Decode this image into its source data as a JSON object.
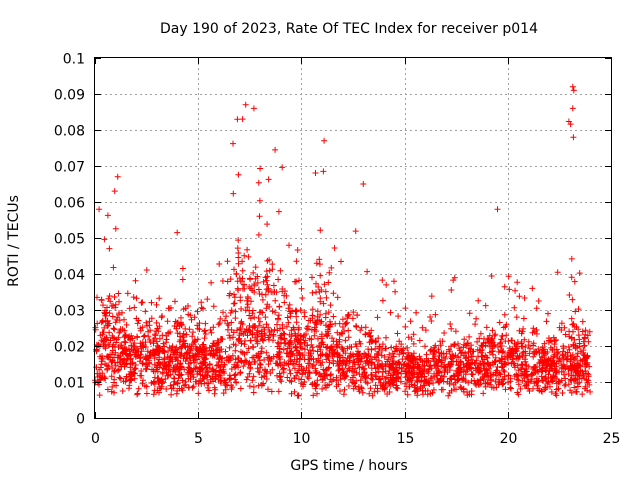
{
  "chart_data": {
    "type": "scatter",
    "title": "Day 190 of 2023, Rate Of TEC Index for receiver p014",
    "xlabel": "GPS time / hours",
    "ylabel": "ROTI / TECUs",
    "xlim": [
      0,
      25
    ],
    "ylim": [
      0,
      0.1
    ],
    "xticks": [
      "0",
      "5",
      "10",
      "15",
      "20",
      "25"
    ],
    "yticks": [
      "0",
      "0.01",
      "0.02",
      "0.03",
      "0.04",
      "0.05",
      "0.06",
      "0.07",
      "0.08",
      "0.09",
      "0.1"
    ],
    "grid": true,
    "marker": "+",
    "color": "#ff0000",
    "data_extent_hours": [
      0,
      24
    ],
    "series": [
      {
        "name": "ROTI",
        "profile_hours": [
          0,
          0.5,
          1,
          1.5,
          2,
          2.5,
          3,
          3.5,
          4,
          4.5,
          5,
          5.5,
          6,
          6.5,
          7,
          7.5,
          8,
          8.5,
          9,
          9.5,
          10,
          10.5,
          11,
          11.5,
          12,
          12.5,
          13,
          13.5,
          14,
          14.5,
          15,
          15.5,
          16,
          16.5,
          17,
          17.5,
          18,
          18.5,
          19,
          19.5,
          20,
          20.5,
          21,
          21.5,
          22,
          22.5,
          23,
          23.5,
          24
        ],
        "typical_roti": [
          0.018,
          0.02,
          0.019,
          0.017,
          0.018,
          0.017,
          0.018,
          0.016,
          0.017,
          0.016,
          0.017,
          0.016,
          0.016,
          0.017,
          0.022,
          0.024,
          0.023,
          0.024,
          0.022,
          0.02,
          0.019,
          0.021,
          0.02,
          0.018,
          0.016,
          0.015,
          0.016,
          0.014,
          0.013,
          0.013,
          0.013,
          0.013,
          0.013,
          0.014,
          0.014,
          0.014,
          0.014,
          0.015,
          0.015,
          0.015,
          0.016,
          0.016,
          0.015,
          0.015,
          0.014,
          0.014,
          0.015,
          0.015,
          0.015
        ],
        "upper_envelope_roti": [
          0.035,
          0.055,
          0.067,
          0.042,
          0.041,
          0.049,
          0.036,
          0.035,
          0.056,
          0.038,
          0.035,
          0.036,
          0.045,
          0.083,
          0.087,
          0.086,
          0.07,
          0.079,
          0.075,
          0.061,
          0.044,
          0.069,
          0.077,
          0.05,
          0.045,
          0.065,
          0.048,
          0.04,
          0.039,
          0.043,
          0.035,
          0.03,
          0.035,
          0.034,
          0.035,
          0.04,
          0.04,
          0.035,
          0.043,
          0.059,
          0.043,
          0.045,
          0.039,
          0.034,
          0.035,
          0.048,
          0.092,
          0.05,
          0.04
        ]
      }
    ],
    "peak_points": [
      {
        "x": 23.15,
        "y": 0.092
      },
      {
        "x": 23.2,
        "y": 0.091
      },
      {
        "x": 23.15,
        "y": 0.086
      },
      {
        "x": 23.18,
        "y": 0.078
      },
      {
        "x": 7.3,
        "y": 0.087
      },
      {
        "x": 6.9,
        "y": 0.083
      },
      {
        "x": 7.7,
        "y": 0.086
      },
      {
        "x": 11.1,
        "y": 0.077
      },
      {
        "x": 19.5,
        "y": 0.058
      },
      {
        "x": 1.1,
        "y": 0.067
      },
      {
        "x": 0.2,
        "y": 0.058
      },
      {
        "x": 13.0,
        "y": 0.065
      }
    ]
  }
}
